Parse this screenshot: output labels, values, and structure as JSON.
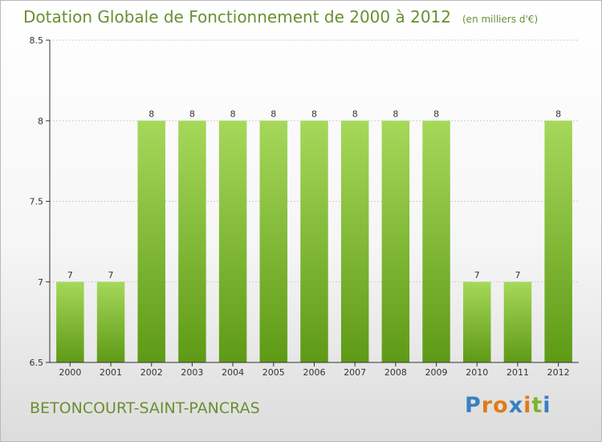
{
  "title": "Dotation Globale de Fonctionnement de 2000 à 2012",
  "unit_note": "(en milliers d'€)",
  "city": "BETONCOURT-SAINT-PANCRAS",
  "logo": {
    "letters": [
      "P",
      "r",
      "o",
      "x",
      "i",
      "t",
      "i"
    ],
    "colors": [
      "#3a7fc4",
      "#e07b1a",
      "#e07b1a",
      "#3a7fc4",
      "#e07b1a",
      "#7bb52d",
      "#3a7fc4"
    ]
  },
  "colors": {
    "bar_light": "#a6d85a",
    "bar_dark": "#5e9a16",
    "axis": "#333333",
    "grid": "#cccccc",
    "text": "#333333"
  },
  "chart_data": {
    "type": "bar",
    "categories": [
      "2000",
      "2001",
      "2002",
      "2003",
      "2004",
      "2005",
      "2006",
      "2007",
      "2008",
      "2009",
      "2010",
      "2011",
      "2012"
    ],
    "values": [
      7,
      7,
      8,
      8,
      8,
      8,
      8,
      8,
      8,
      8,
      7,
      7,
      8
    ],
    "data_labels": [
      "7",
      "7",
      "8",
      "8",
      "8",
      "8",
      "8",
      "8",
      "8",
      "8",
      "7",
      "7",
      "8"
    ],
    "yticks": [
      6.5,
      7,
      7.5,
      8,
      8.5
    ],
    "ytick_labels": [
      "6.5",
      "7",
      "7.5",
      "8",
      "8.5"
    ],
    "ylim": [
      6.5,
      8.5
    ],
    "grid": true
  }
}
